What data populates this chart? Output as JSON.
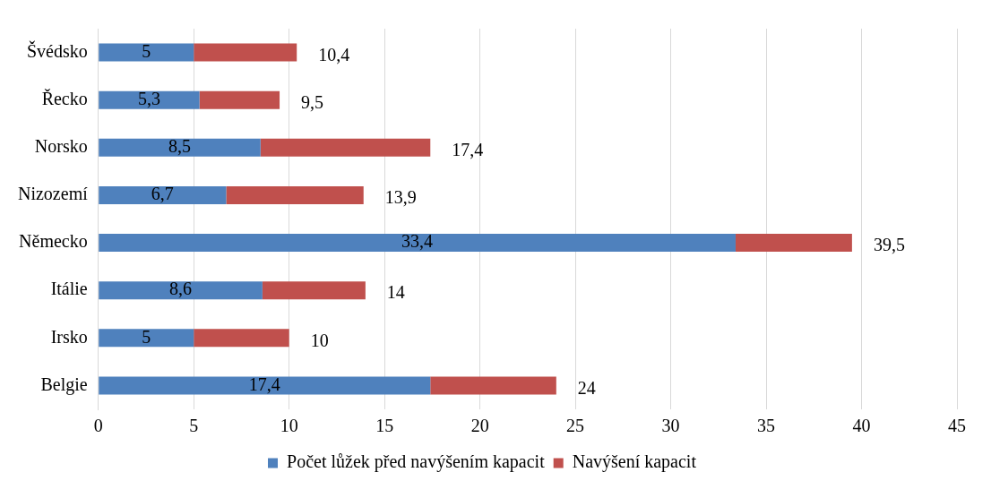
{
  "chart_data": {
    "type": "bar",
    "orientation": "horizontal",
    "stacked": true,
    "categories": [
      "Švédsko",
      "Řecko",
      "Norsko",
      "Nizozemí",
      "Německo",
      "Itálie",
      "Irsko",
      "Belgie"
    ],
    "series": [
      {
        "name": "Počet lůžek před navýšením kapacit",
        "color": "#4f81bd",
        "values": [
          5,
          5.3,
          8.5,
          6.7,
          33.4,
          8.6,
          5,
          17.4
        ],
        "value_labels": [
          "5",
          "5,3",
          "8,5",
          "6,7",
          "33,4",
          "8,6",
          "5",
          "17,4"
        ]
      },
      {
        "name": "Navýšení kapacit",
        "color": "#c0504d",
        "values": [
          5.4,
          4.2,
          8.9,
          7.2,
          6.1,
          5.4,
          5,
          6.6
        ]
      }
    ],
    "totals": [
      "10,4",
      "9,5",
      "17,4",
      "13,9",
      "39,5",
      "14",
      "10",
      "24"
    ],
    "xlim": [
      0,
      45
    ],
    "xticks": [
      0,
      5,
      10,
      15,
      20,
      25,
      30,
      35,
      40,
      45
    ],
    "grid": "x",
    "legend": "bottom"
  }
}
